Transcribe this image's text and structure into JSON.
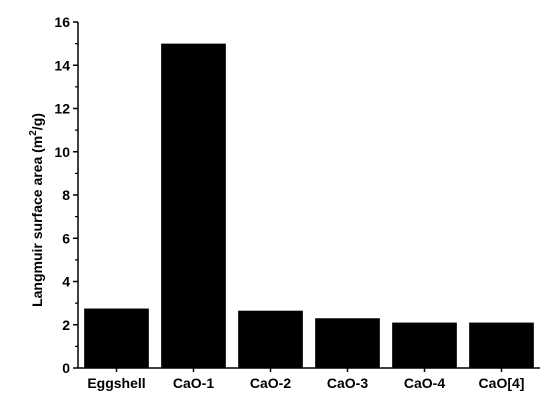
{
  "chart_data": {
    "type": "bar",
    "categories": [
      "Eggshell",
      "CaO-1",
      "CaO-2",
      "CaO-3",
      "CaO-4",
      "CaO[4]"
    ],
    "values": [
      2.75,
      15.0,
      2.65,
      2.3,
      2.1,
      2.1
    ],
    "ylabel": {
      "main": "Langmuir surface area (m",
      "sup": "2",
      "end": "/g)"
    },
    "ylim": [
      0,
      16
    ],
    "yticks": [
      "0",
      "2",
      "4",
      "6",
      "8",
      "10",
      "12",
      "14",
      "16"
    ],
    "bar_color": "#000000",
    "grid": false
  }
}
